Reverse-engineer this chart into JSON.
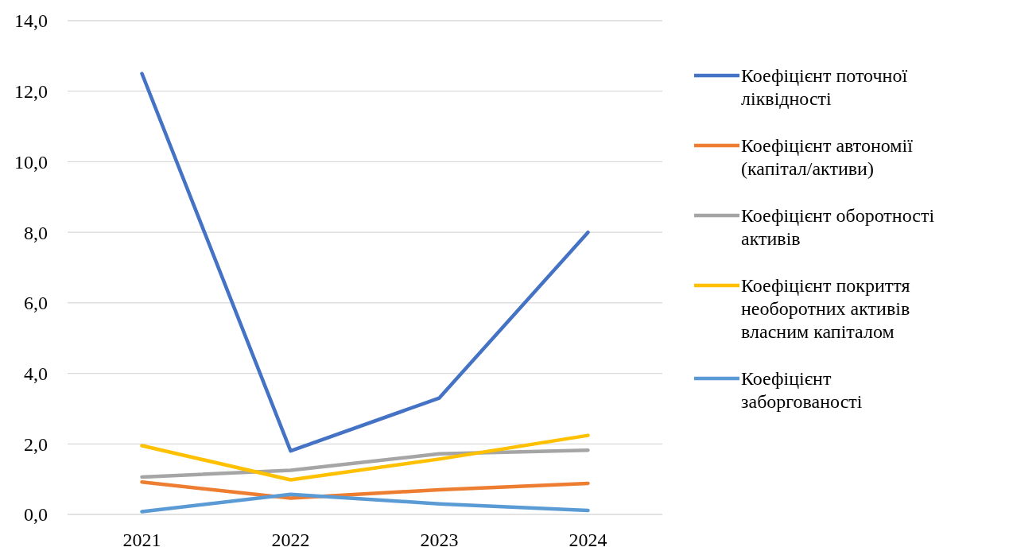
{
  "chart_data": {
    "type": "line",
    "categories": [
      "2021",
      "2022",
      "2023",
      "2024"
    ],
    "series": [
      {
        "name": "Коефіцієнт поточної ліквідності",
        "color": "#4472c4",
        "values": [
          12.5,
          1.8,
          3.3,
          8.0
        ]
      },
      {
        "name": "Коефіцієнт автономії (капітал/активи)",
        "color": "#ed7d31",
        "values": [
          0.92,
          0.46,
          0.7,
          0.88
        ]
      },
      {
        "name": "Коефіцієнт оборотності активів",
        "color": "#a5a5a5",
        "values": [
          1.06,
          1.25,
          1.72,
          1.82
        ]
      },
      {
        "name": "Коефіцієнт покриття необоротних активів власним капіталом",
        "color": "#ffc000",
        "values": [
          1.95,
          0.98,
          1.57,
          2.24
        ]
      },
      {
        "name": "Коефіцієнт заборгованості",
        "color": "#5b9bd5",
        "values": [
          0.08,
          0.57,
          0.3,
          0.11
        ]
      }
    ],
    "ylim": [
      0,
      14
    ],
    "yticks": [
      {
        "value": 0,
        "label": "0,0"
      },
      {
        "value": 2,
        "label": "2,0"
      },
      {
        "value": 4,
        "label": "4,0"
      },
      {
        "value": 6,
        "label": "6,0"
      },
      {
        "value": 8,
        "label": "8,0"
      },
      {
        "value": 10,
        "label": "10,0"
      },
      {
        "value": 12,
        "label": "12,0"
      },
      {
        "value": 14,
        "label": "14,0"
      }
    ],
    "grid": "y",
    "legend": "right",
    "marker": "none",
    "line_style": "solid"
  }
}
